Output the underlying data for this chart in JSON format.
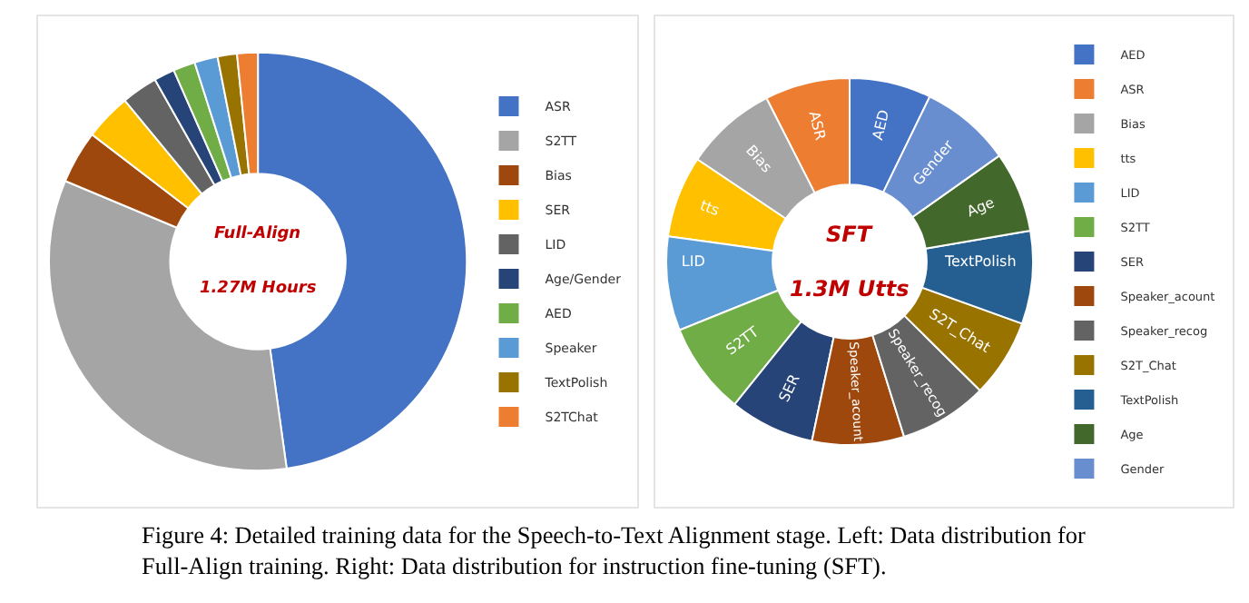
{
  "chart_data": [
    {
      "type": "donut",
      "categories": [
        "ASR",
        "S2TT",
        "Bias",
        "SER",
        "LID",
        "Age/Gender",
        "AED",
        "Speaker",
        "TextPolish",
        "S2TChat"
      ],
      "values": [
        47.8,
        33.5,
        4.1,
        3.6,
        2.8,
        1.6,
        1.7,
        1.8,
        1.5,
        1.6
      ],
      "colors": [
        "#4472c4",
        "#a5a5a5",
        "#9e480e",
        "#ffc000",
        "#636363",
        "#264478",
        "#70ad47",
        "#5b9bd5",
        "#997300",
        "#ed7d31"
      ],
      "legend": "right",
      "annotations": [
        "Full-Align",
        "1.27M Hours",
        "Figure 4: Detailed training data for the Speech-to-Text Alignment stage. Left: Data distribution for",
        "Full-Align training. Right: Data distribution for instruction fine-tuning (SFT)."
      ]
    },
    {
      "type": "donut",
      "categories": [
        "AED",
        "ASR",
        "Bias",
        "tts",
        "LID",
        "S2TT",
        "SER",
        "Speaker_acount",
        "Speaker_recog",
        "S2T_Chat",
        "TextPolish",
        "Age",
        "Gender"
      ],
      "values": [
        7.2,
        7.5,
        8.1,
        7.2,
        8.3,
        8.1,
        7.5,
        8.1,
        7.8,
        6.9,
        8.2,
        7.1,
        8.0
      ],
      "colors": [
        "#4472c4",
        "#ed7d31",
        "#a5a5a5",
        "#ffc000",
        "#5b9bd5",
        "#70ad47",
        "#264478",
        "#9e480e",
        "#636363",
        "#997300",
        "#255e91",
        "#43682b",
        "#698ed0"
      ],
      "legend": "right",
      "annotations": [
        "SFT",
        "1.3M Utts"
      ]
    }
  ]
}
